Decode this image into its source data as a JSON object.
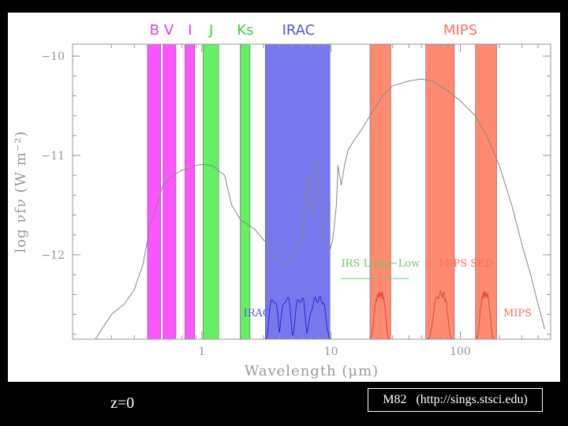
{
  "chart_data": {
    "type": "line",
    "xlabel": "Wavelength  (μm)",
    "ylabel": "log  νfν  (W m⁻²)",
    "x_scale": "log",
    "xlim": [
      0.1,
      500
    ],
    "ylim": [
      -12.85,
      -9.88
    ],
    "x_ticks": [
      {
        "value": 1,
        "label": "1"
      },
      {
        "value": 10,
        "label": "10"
      },
      {
        "value": 100,
        "label": "100"
      }
    ],
    "y_ticks": [
      {
        "value": -10,
        "label": "−10"
      },
      {
        "value": -11,
        "label": "−11"
      },
      {
        "value": -12,
        "label": "−12"
      }
    ],
    "bands": [
      {
        "name": "B",
        "range": [
          0.38,
          0.48
        ],
        "color": "#ff55ff",
        "label_color": "#e040e0",
        "group": "optical"
      },
      {
        "name": "V",
        "range": [
          0.5,
          0.63
        ],
        "color": "#ff55ff",
        "label_color": "#e040e0",
        "group": "optical"
      },
      {
        "name": "I",
        "range": [
          0.74,
          0.88
        ],
        "color": "#ff55ff",
        "label_color": "#e040e0",
        "group": "optical"
      },
      {
        "name": "J",
        "range": [
          1.02,
          1.35
        ],
        "color": "#66ee66",
        "label_color": "#44cc44",
        "group": "nir"
      },
      {
        "name": "Ks",
        "range": [
          1.98,
          2.36
        ],
        "color": "#66ee66",
        "label_color": "#44cc44",
        "group": "nir"
      },
      {
        "name": "IRAC",
        "range": [
          3.1,
          9.8
        ],
        "color": "#7777ee",
        "label_color": "#5555dd",
        "group": "irac"
      },
      {
        "name": "MIPS-24",
        "range": [
          20.0,
          29.0
        ],
        "color": "#ff8a72",
        "group": "mips"
      },
      {
        "name": "MIPS-70",
        "range": [
          54.0,
          90.0
        ],
        "color": "#ff8a72",
        "group": "mips"
      },
      {
        "name": "MIPS-160",
        "range": [
          131.0,
          191.0
        ],
        "color": "#ff8a72",
        "group": "mips"
      }
    ],
    "band_labels": [
      {
        "text": "B",
        "x": 0.43,
        "color": "#e040e0"
      },
      {
        "text": "V",
        "x": 0.556,
        "color": "#e040e0"
      },
      {
        "text": "I",
        "x": 0.81,
        "color": "#e040e0"
      },
      {
        "text": "J",
        "x": 1.18,
        "color": "#44cc44"
      },
      {
        "text": "Ks",
        "x": 2.17,
        "color": "#44cc44"
      },
      {
        "text": "IRAC",
        "x": 5.6,
        "color": "#5555dd"
      },
      {
        "text": "MIPS",
        "x": 100,
        "color": "#ff7060"
      }
    ],
    "sed": {
      "name": "M82 SED",
      "x": [
        0.15,
        0.2,
        0.25,
        0.3,
        0.35,
        0.4,
        0.5,
        0.6,
        0.7,
        0.8,
        0.9,
        1.0,
        1.2,
        1.5,
        1.7,
        2.0,
        2.3,
        2.6,
        3.0,
        3.3,
        3.5,
        3.9,
        4.3,
        4.6,
        5.0,
        5.5,
        6.0,
        6.2,
        6.5,
        6.7,
        7.0,
        7.3,
        7.7,
        8.1,
        8.6,
        9.0,
        9.5,
        9.8,
        10.3,
        11.0,
        11.3,
        12.0,
        12.7,
        13.5,
        15.0,
        17.0,
        20.0,
        25.0,
        30.0,
        40.0,
        50.0,
        60.0,
        70.0,
        80.0,
        100.0,
        130.0,
        160.0,
        200.0,
        250.0,
        300.0,
        350.0,
        400.0,
        450.0
      ],
      "y": [
        -12.85,
        -12.6,
        -12.5,
        -12.35,
        -12.1,
        -11.7,
        -11.3,
        -11.2,
        -11.15,
        -11.13,
        -11.1,
        -11.09,
        -11.1,
        -11.2,
        -11.5,
        -11.65,
        -11.7,
        -11.75,
        -11.85,
        -11.9,
        -12.0,
        -12.05,
        -12.1,
        -12.1,
        -12.05,
        -11.85,
        -11.85,
        -11.55,
        -11.25,
        -11.2,
        -11.5,
        -11.6,
        -11.05,
        -11.35,
        -11.75,
        -11.85,
        -11.95,
        -11.95,
        -11.85,
        -11.5,
        -11.1,
        -11.3,
        -11.1,
        -10.95,
        -10.85,
        -10.75,
        -10.6,
        -10.4,
        -10.3,
        -10.25,
        -10.23,
        -10.25,
        -10.3,
        -10.35,
        -10.45,
        -10.6,
        -10.8,
        -11.1,
        -11.5,
        -11.9,
        -12.2,
        -12.5,
        -12.75
      ]
    },
    "filter_curves": {
      "irac": {
        "centers": [
          3.6,
          4.5,
          5.8,
          8.0
        ],
        "widths": [
          0.7,
          0.95,
          1.3,
          2.8
        ],
        "peak_y": -12.45,
        "base_y": -12.85
      },
      "mips": {
        "centers": [
          24,
          71,
          156
        ],
        "widths": [
          6,
          22,
          35
        ],
        "peak_y": -12.4,
        "base_y": -12.85
      }
    },
    "annotations": [
      {
        "text": "IRS Long−Low",
        "x": 12.0,
        "y": -12.12,
        "color": "#66cc66"
      },
      {
        "text": "MIPS SED",
        "x": 68.0,
        "y": -12.12,
        "color": "#ff6a5a"
      },
      {
        "text": "IRAC",
        "x": 2.1,
        "y": -12.62,
        "color": "#5555dd"
      },
      {
        "text": "MIPS",
        "x": 215.0,
        "y": -12.62,
        "color": "#ff6a5a"
      }
    ],
    "mips_sed_range": [
      55,
      95
    ]
  },
  "caption": {
    "redshift": "z=0",
    "credit": "M82   (http://sings.stsci.edu)"
  }
}
